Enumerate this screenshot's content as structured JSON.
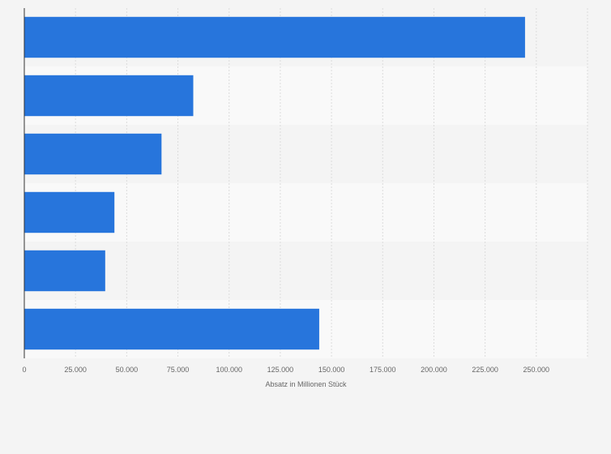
{
  "chart_data": {
    "type": "bar",
    "orientation": "horizontal",
    "title": "",
    "xlabel": "Absatz in Millionen Stück",
    "ylabel": "",
    "categories": [
      "",
      "",
      "",
      "",
      "",
      ""
    ],
    "values": [
      244500,
      82500,
      67000,
      44000,
      39500,
      144000
    ],
    "xlim": [
      0,
      275000
    ],
    "ticks": [
      0,
      25000,
      50000,
      75000,
      100000,
      125000,
      150000,
      175000,
      200000,
      225000,
      250000
    ],
    "tick_labels": [
      "0",
      "25.000",
      "50.000",
      "75.000",
      "100.000",
      "125.000",
      "150.000",
      "175.000",
      "200.000",
      "225.000",
      "250.000"
    ],
    "grid": true,
    "legend": "none",
    "colors": {
      "bar": "#2775dc",
      "background": "#f4f4f4",
      "band_light": "#f9f9f9",
      "band_dark": "#f4f4f4",
      "grid": "#dcdcdc",
      "axis": "#333333",
      "text": "#666666"
    }
  }
}
